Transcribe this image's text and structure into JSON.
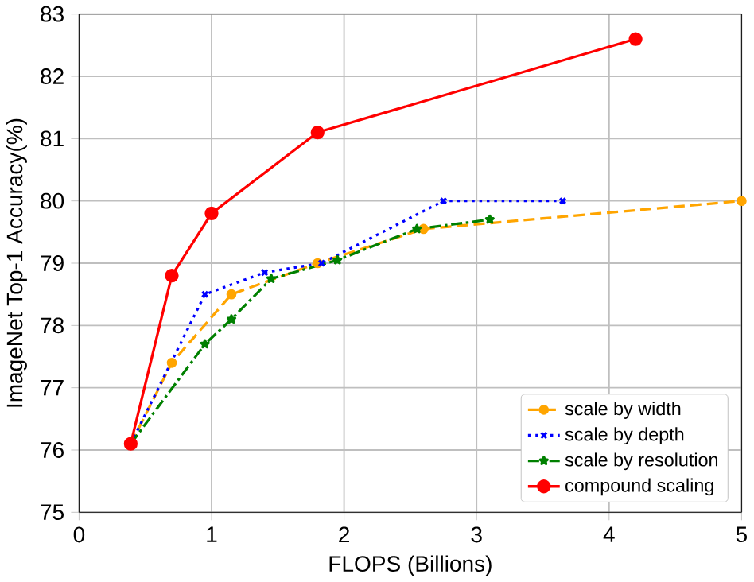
{
  "chart_data": {
    "type": "line",
    "xlabel": "FLOPS (Billions)",
    "ylabel": "ImageNet Top-1 Accuracy(%)",
    "xlim": [
      0,
      5
    ],
    "ylim": [
      75,
      83
    ],
    "xticks": [
      0,
      1,
      2,
      3,
      4,
      5
    ],
    "yticks": [
      75,
      76,
      77,
      78,
      79,
      80,
      81,
      82,
      83
    ],
    "grid": true,
    "legend": "bottom right",
    "series": [
      {
        "name": "scale by width",
        "color": "#ffa500",
        "line_style": "dashed",
        "marker": "circle",
        "x": [
          0.39,
          0.7,
          1.15,
          1.8,
          2.6,
          5.0
        ],
        "values": [
          76.1,
          77.4,
          78.5,
          79.0,
          79.55,
          80.0
        ]
      },
      {
        "name": "scale by depth",
        "color": "#0000ff",
        "line_style": "dotted",
        "marker": "cross",
        "x": [
          0.39,
          0.95,
          1.4,
          1.83,
          2.75,
          3.65
        ],
        "values": [
          76.1,
          78.5,
          78.85,
          79.0,
          80.0,
          80.0
        ]
      },
      {
        "name": "scale by resolution",
        "color": "#008000",
        "line_style": "dashdot",
        "marker": "star",
        "x": [
          0.39,
          0.95,
          1.15,
          1.45,
          1.95,
          2.55,
          3.1
        ],
        "values": [
          76.1,
          77.7,
          78.1,
          78.75,
          79.05,
          79.55,
          79.7
        ]
      },
      {
        "name": "compound scaling",
        "color": "#ff0000",
        "line_style": "solid",
        "marker": "circle",
        "x": [
          0.39,
          0.7,
          1.0,
          1.8,
          4.2
        ],
        "values": [
          76.1,
          78.8,
          79.8,
          81.1,
          82.6
        ]
      }
    ]
  }
}
